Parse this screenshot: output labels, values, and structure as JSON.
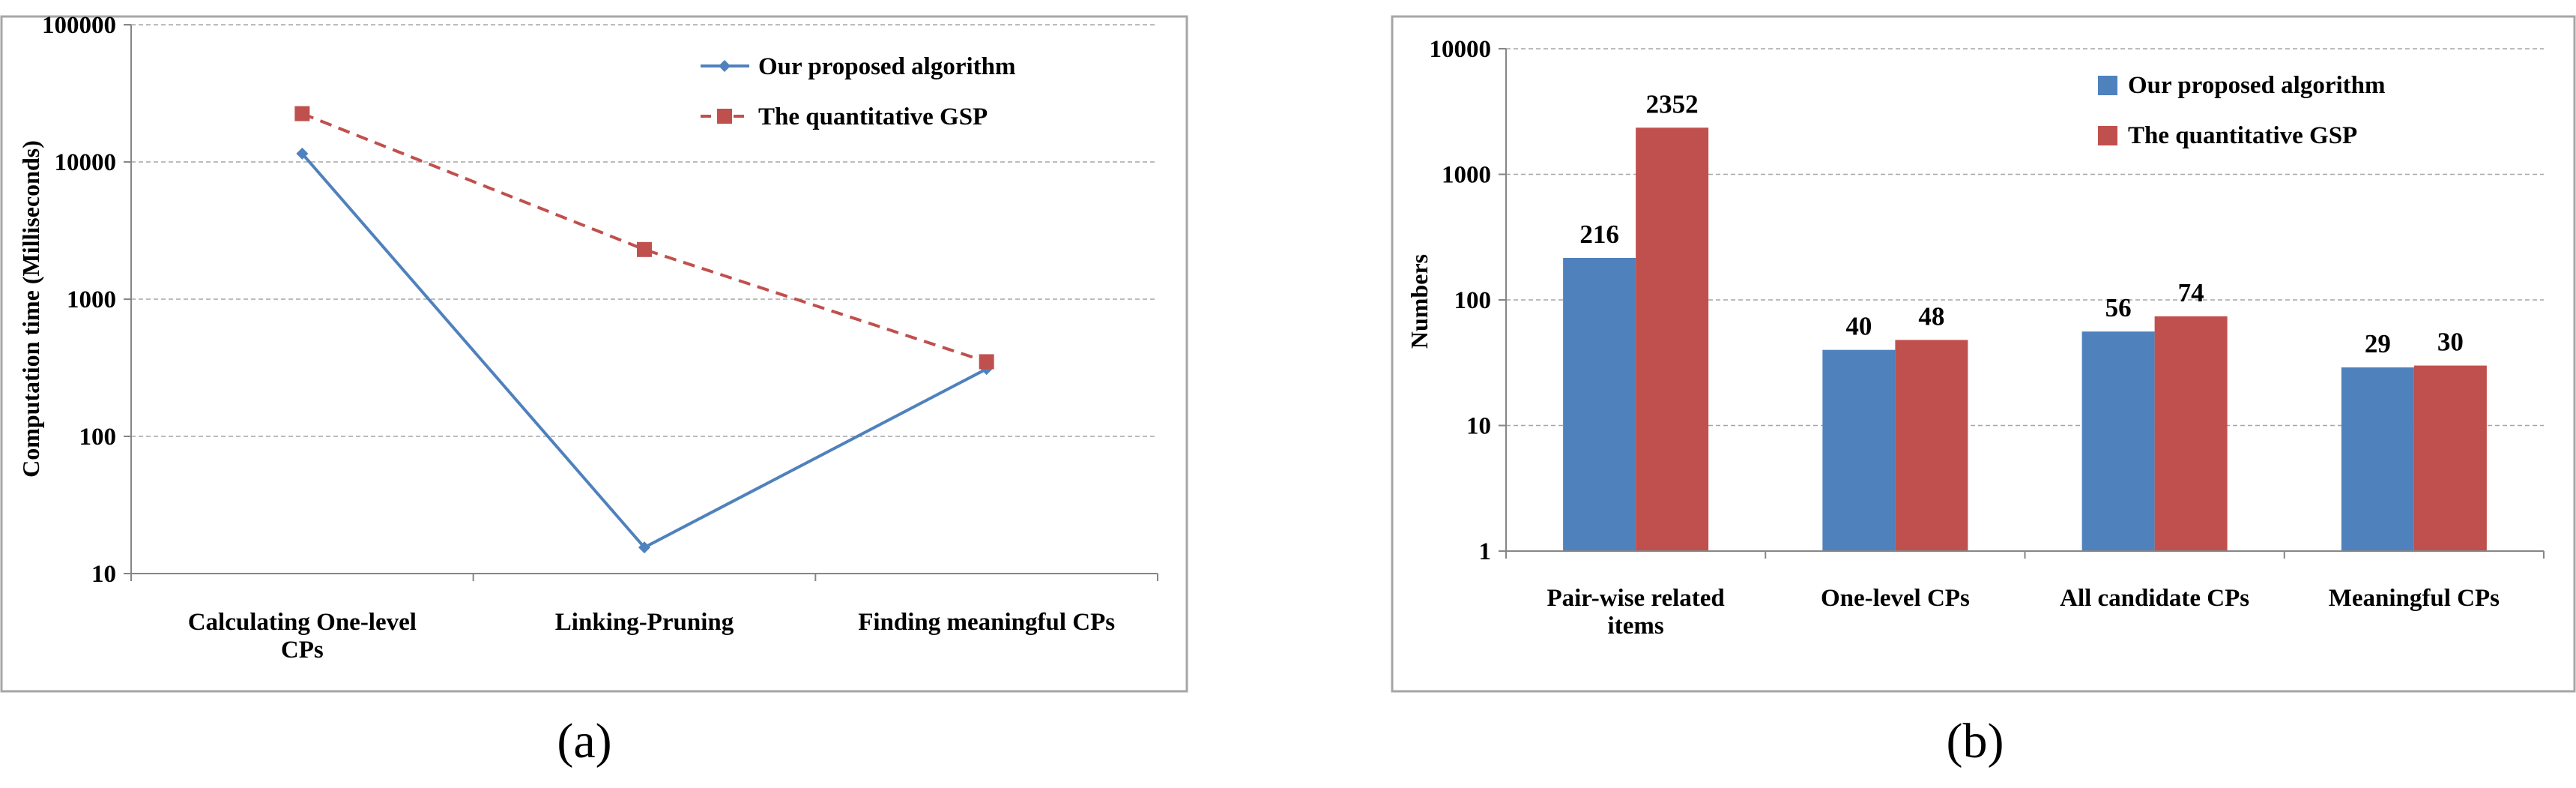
{
  "colors": {
    "blue": "#4f81bd",
    "red": "#c0504d",
    "grid": "#a6a6a6",
    "frame": "#a6a6a6"
  },
  "chart_data": [
    {
      "type": "line",
      "panel_label": "(a)",
      "ylabel": "Computation time (Milliseconds)",
      "yscale": "log",
      "ylim": [
        10,
        100000
      ],
      "yticks": [
        "10",
        "100",
        "1000",
        "10000",
        "100000"
      ],
      "categories": [
        [
          "Calculating One-level",
          "CPs"
        ],
        [
          "Linking-Pruning"
        ],
        [
          "Finding meaningful CPs"
        ]
      ],
      "grid": true,
      "legend_position": "top-right",
      "series": [
        {
          "name": "Our proposed algorithm",
          "values": [
            11500,
            15.5,
            310
          ],
          "style": "solid",
          "marker": "diamond"
        },
        {
          "name": "The quantitative GSP",
          "values": [
            22500,
            2300,
            350
          ],
          "style": "dashed",
          "marker": "square"
        }
      ]
    },
    {
      "type": "bar",
      "panel_label": "(b)",
      "ylabel": "Numbers",
      "yscale": "log",
      "ylim": [
        1,
        10000
      ],
      "yticks": [
        "1",
        "10",
        "100",
        "1000",
        "10000"
      ],
      "categories": [
        [
          "Pair-wise related",
          "items"
        ],
        [
          "One-level CPs"
        ],
        [
          "All candidate CPs"
        ],
        [
          "Meaningful CPs"
        ]
      ],
      "grid": true,
      "legend_position": "top-right",
      "series": [
        {
          "name": "Our proposed algorithm",
          "values": [
            216,
            40,
            56,
            29
          ],
          "labels": [
            "216",
            "40",
            "56",
            "29"
          ]
        },
        {
          "name": "The quantitative GSP",
          "values": [
            2352,
            48,
            74,
            30
          ],
          "labels": [
            "2352",
            "48",
            "74",
            "30"
          ]
        }
      ]
    }
  ]
}
